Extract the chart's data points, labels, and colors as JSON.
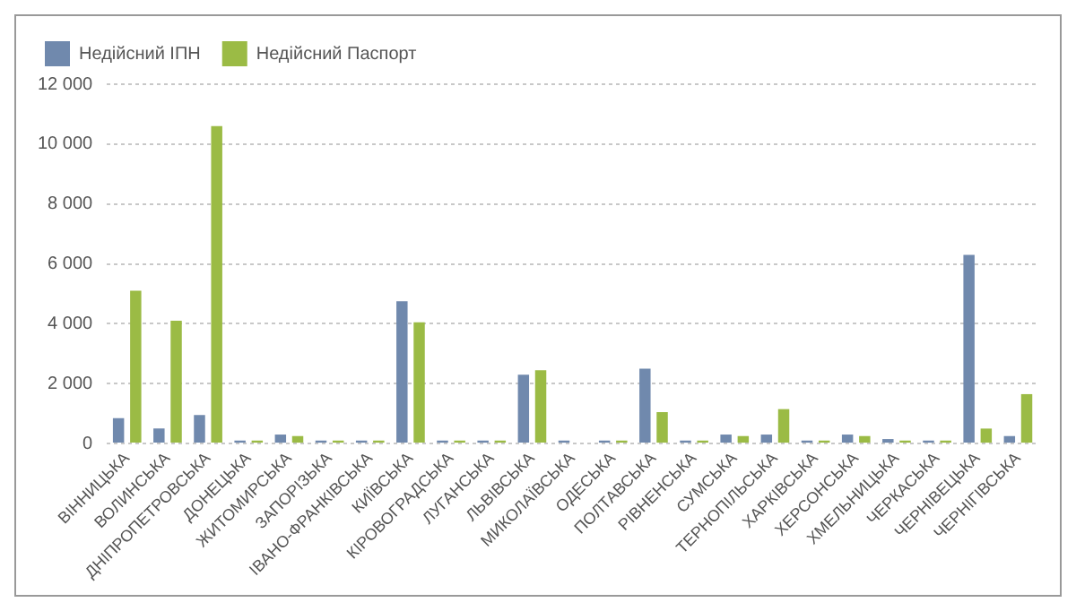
{
  "chart_data": {
    "type": "bar",
    "categories": [
      "ВІННИЦЬКА",
      "ВОЛИНСЬКА",
      "ДНІПРОПЕТРОВСЬКА",
      "ДОНЕЦЬКА",
      "ЖИТОМИРСЬКА",
      "ЗАПОРІЗЬКА",
      "ІВАНО-ФРАНКІВСЬКА",
      "КИЇВСЬКА",
      "КІРОВОГРАДСЬКА",
      "ЛУГАНСЬКА",
      "ЛЬВІВСЬКА",
      "МИКОЛАЇВСЬКА",
      "ОДЕСЬКА",
      "ПОЛТАВСЬКА",
      "РІВНЕНСЬКА",
      "СУМСЬКА",
      "ТЕРНОПІЛЬСЬКА",
      "ХАРКІВСЬКА",
      "ХЕРСОНСЬКА",
      "ХМЕЛЬНИЦЬКА",
      "ЧЕРКАСЬКА",
      "ЧЕРНІВЕЦЬКА",
      "ЧЕРНІГІВСЬКА"
    ],
    "series": [
      {
        "name": "Недійсний ІПН",
        "color": "#7089ad",
        "values": [
          850,
          500,
          950,
          100,
          300,
          100,
          100,
          4750,
          100,
          100,
          2300,
          100,
          100,
          2500,
          100,
          300,
          300,
          100,
          300,
          150,
          100,
          6300,
          250
        ]
      },
      {
        "name": "Недійсний Паспорт",
        "color": "#9bbb45",
        "values": [
          5100,
          4100,
          10600,
          100,
          250,
          100,
          100,
          4050,
          100,
          100,
          2450,
          0,
          100,
          1050,
          100,
          250,
          1150,
          100,
          250,
          100,
          100,
          500,
          1650
        ]
      }
    ],
    "ylim": [
      0,
      12000
    ],
    "yticks": [
      {
        "value": 0,
        "label": "0"
      },
      {
        "value": 2000,
        "label": "2 000"
      },
      {
        "value": 4000,
        "label": "4 000"
      },
      {
        "value": 6000,
        "label": "6 000"
      },
      {
        "value": 8000,
        "label": "8 000"
      },
      {
        "value": 10000,
        "label": "10 000"
      },
      {
        "value": 12000,
        "label": "12 000"
      }
    ],
    "grid": "y",
    "legend": "top left"
  }
}
